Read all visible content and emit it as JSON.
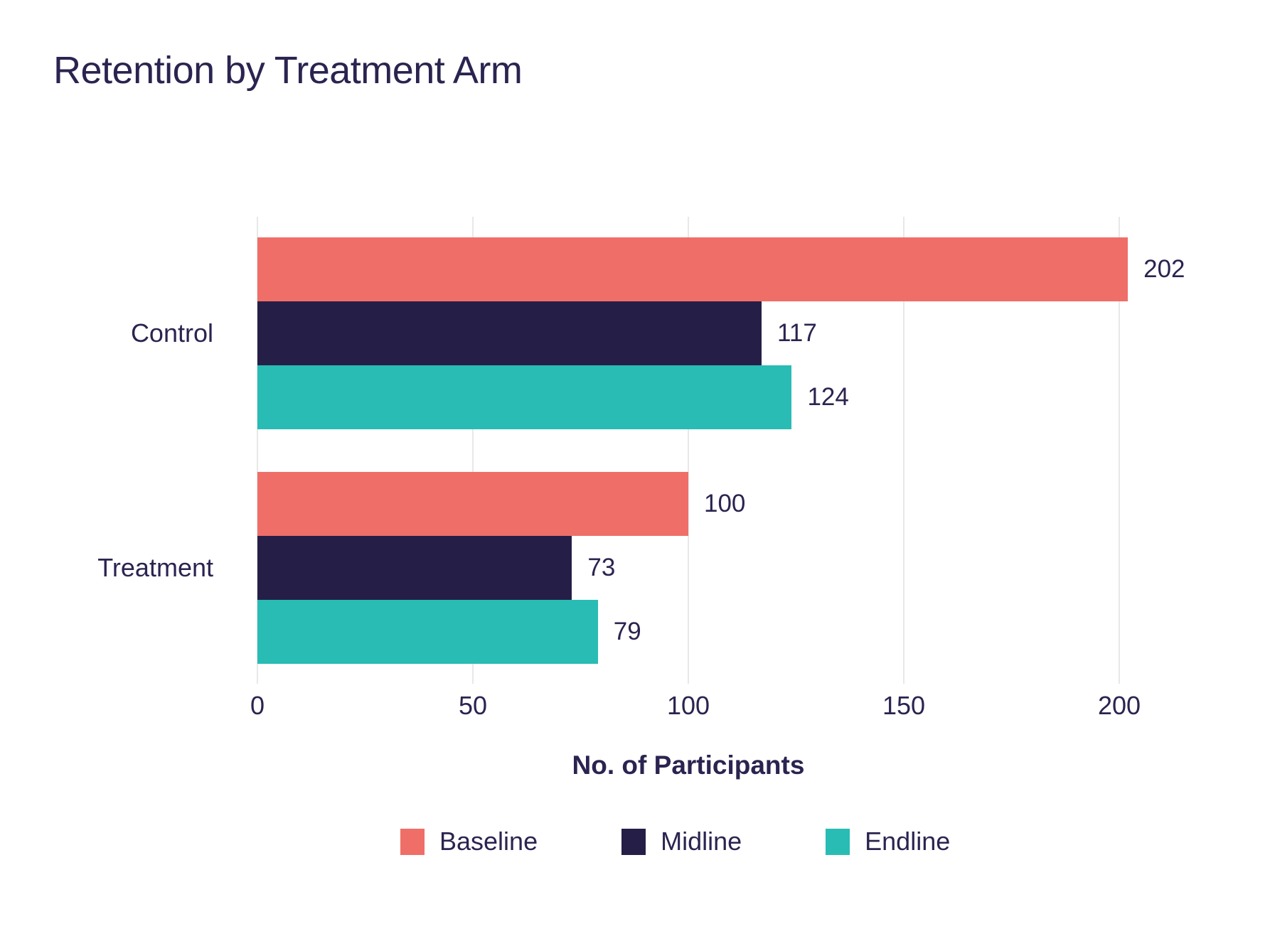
{
  "chart_data": {
    "type": "bar",
    "orientation": "horizontal",
    "title": "Retention by Treatment Arm",
    "categories": [
      "Control",
      "Treatment"
    ],
    "series": [
      {
        "name": "Baseline",
        "color": "#F06E68",
        "values": [
          202,
          100
        ]
      },
      {
        "name": "Midline",
        "color": "#251F47",
        "values": [
          117,
          73
        ]
      },
      {
        "name": "Endline",
        "color": "#28BCB4",
        "values": [
          124,
          79
        ]
      }
    ],
    "value_labels": [
      [
        202,
        100
      ],
      [
        117,
        73
      ],
      [
        124,
        79
      ]
    ],
    "xlabel": "No. of Participants",
    "x_ticks": [
      "0",
      "50",
      "100",
      "150",
      "200"
    ],
    "x_tick_values": [
      0,
      50,
      100,
      150,
      200
    ],
    "xlim": [
      0,
      205
    ],
    "grid": true,
    "legend_position": "bottom",
    "legend_entries": [
      "Baseline",
      "Midline",
      "Endline"
    ],
    "colors": {
      "text": "#2A2450",
      "gridline": "#E8E8E8",
      "background": "#FFFFFF",
      "baseline": "#F06E68",
      "midline": "#251F47",
      "endline": "#28BCB4"
    }
  }
}
